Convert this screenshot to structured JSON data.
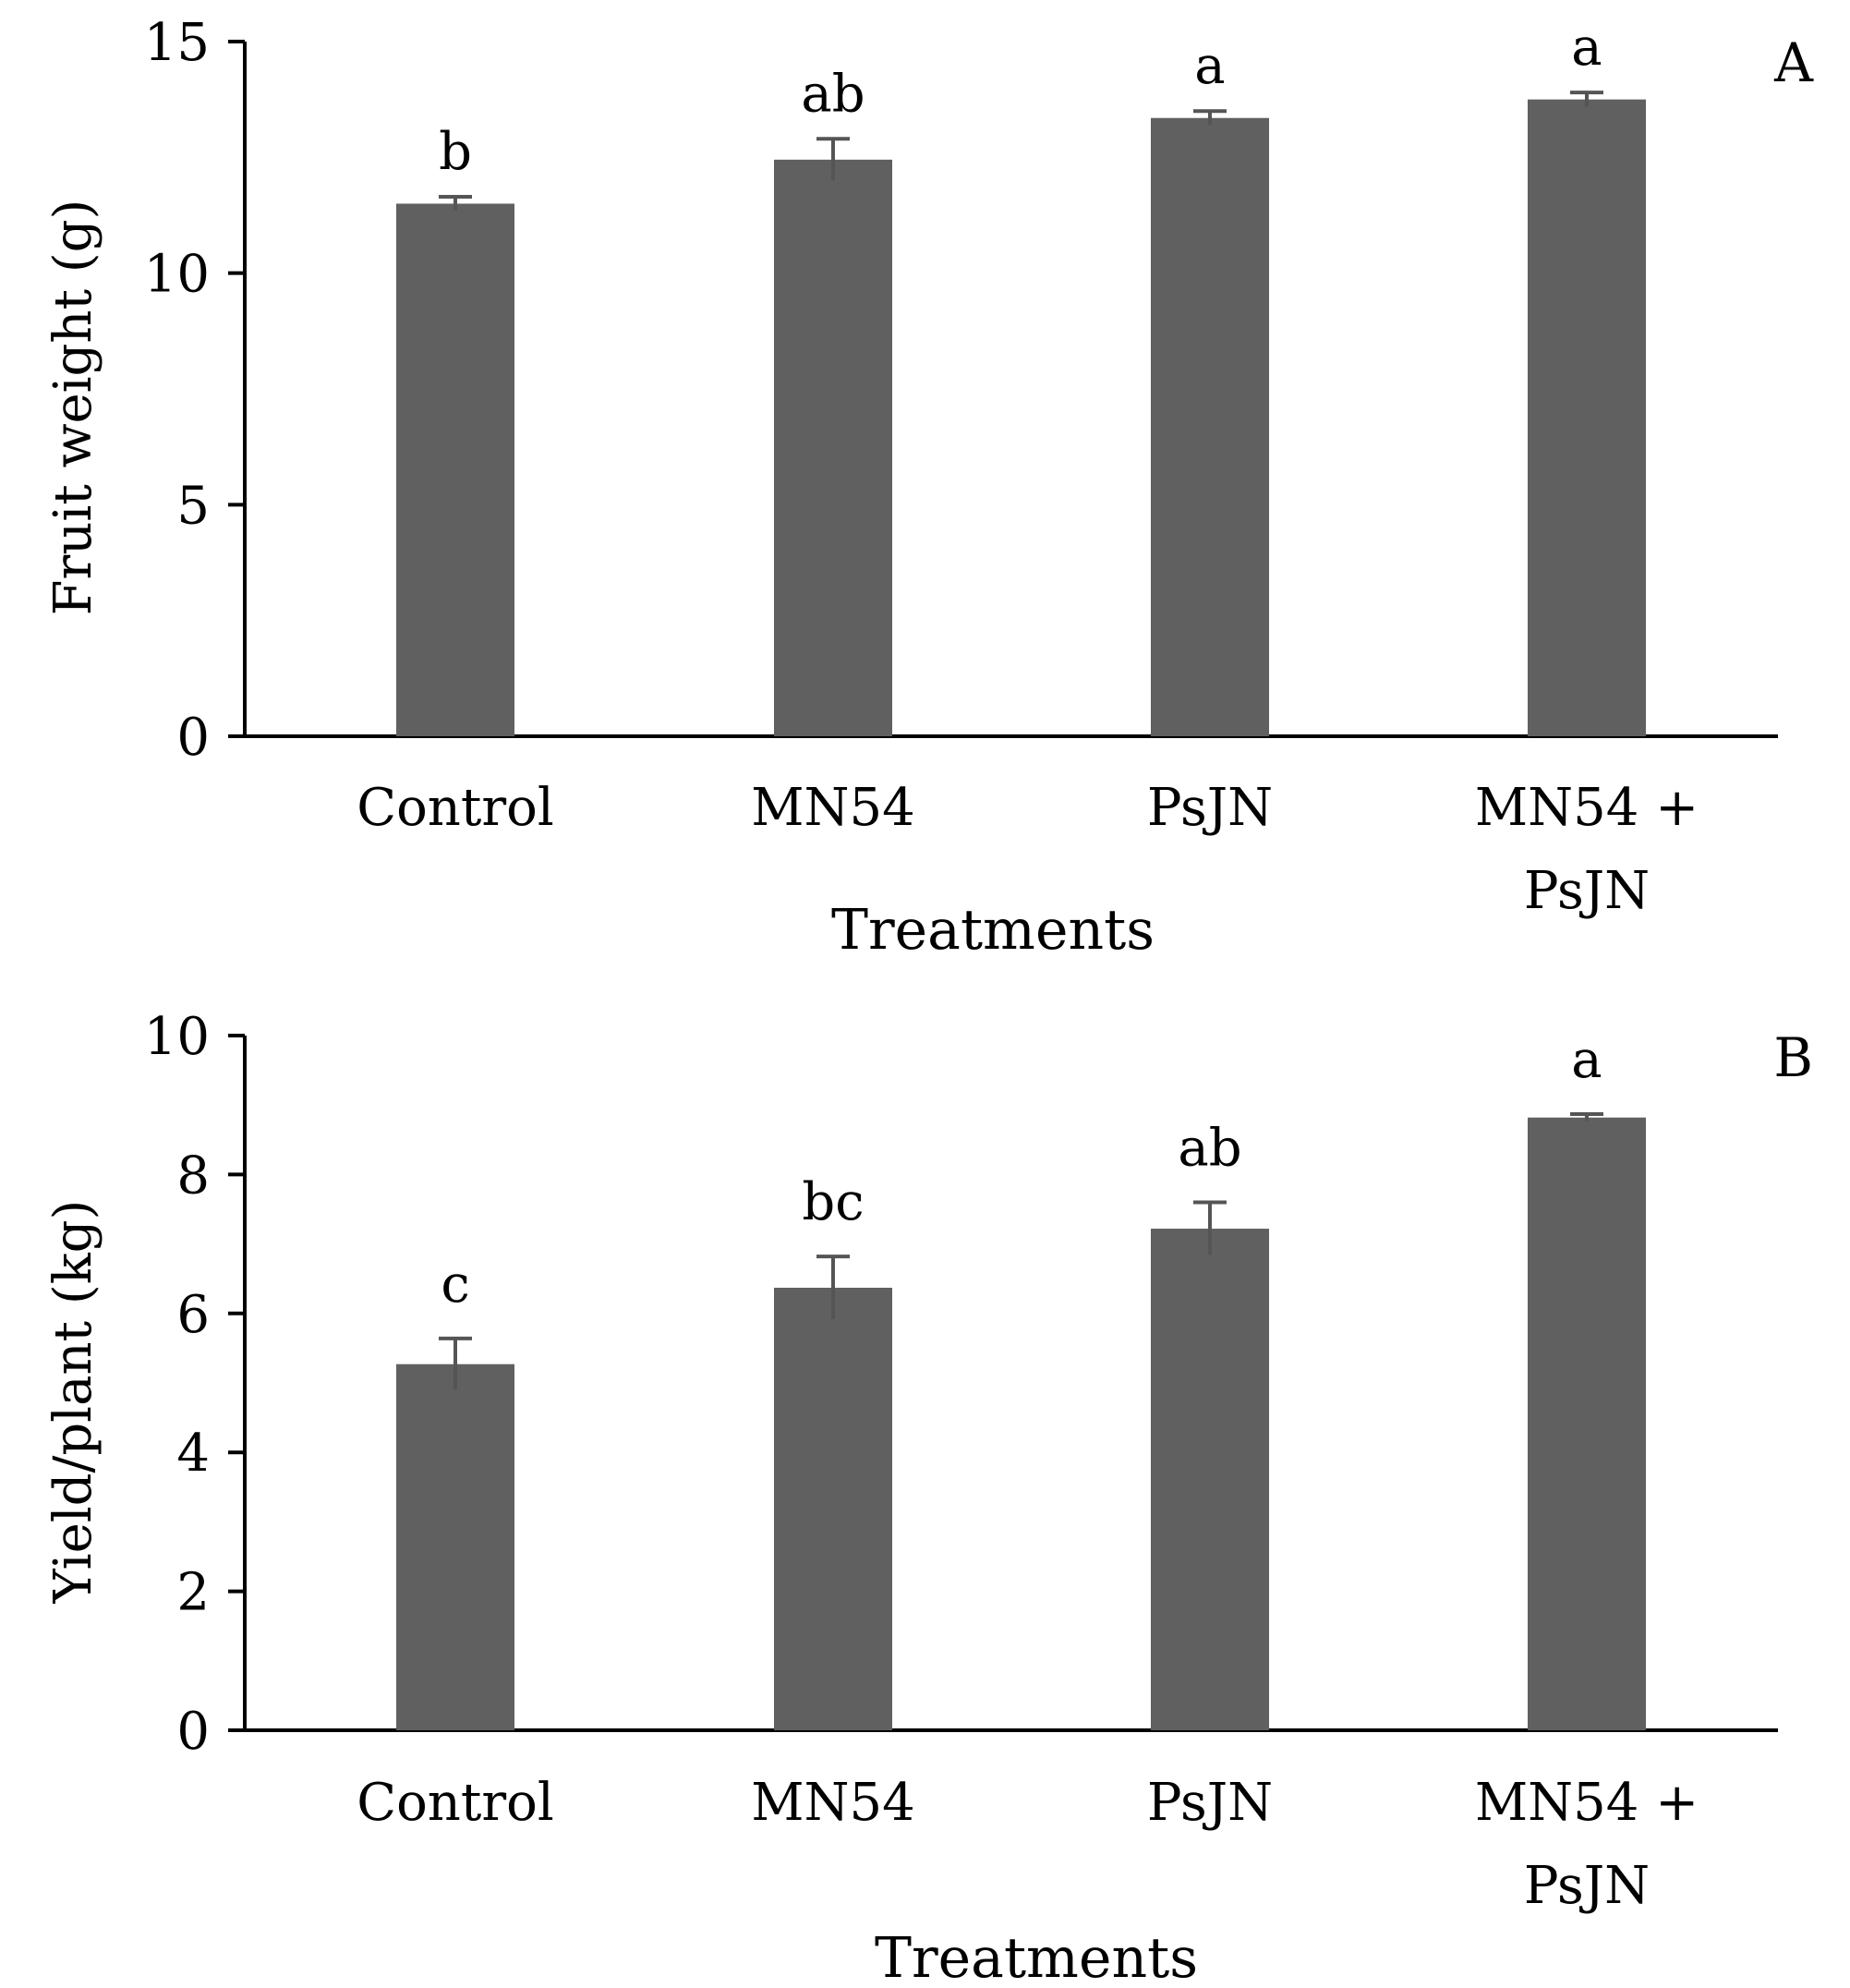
{
  "chart_data": [
    {
      "type": "bar",
      "panel_label": "A",
      "categories": [
        "Control",
        "MN54",
        "PsJN",
        "MN54 +\nPsJN"
      ],
      "values": [
        11.5,
        12.45,
        13.35,
        13.75
      ],
      "errors": [
        0.15,
        0.45,
        0.15,
        0.15
      ],
      "significance": [
        "b",
        "ab",
        "a",
        "a"
      ],
      "xlabel": "Treatments",
      "ylabel": "Fruit weight (g)",
      "ylim": [
        0,
        15
      ],
      "yticks": [
        0,
        5,
        10,
        15
      ],
      "grid": false,
      "bar_color": "#606060",
      "error_color": "#555555"
    },
    {
      "type": "bar",
      "panel_label": "B",
      "categories": [
        "Control",
        "MN54",
        "PsJN",
        "MN54 +\nPsJN"
      ],
      "values": [
        5.27,
        6.37,
        7.22,
        8.82
      ],
      "errors": [
        0.37,
        0.45,
        0.38,
        0.05
      ],
      "significance": [
        "c",
        "bc",
        "ab",
        "a"
      ],
      "xlabel": "Treatments",
      "ylabel": "Yield/plant (kg)",
      "ylim": [
        0,
        10
      ],
      "yticks": [
        0,
        2,
        4,
        6,
        8,
        10
      ],
      "grid": false,
      "bar_color": "#606060",
      "error_color": "#555555"
    }
  ]
}
